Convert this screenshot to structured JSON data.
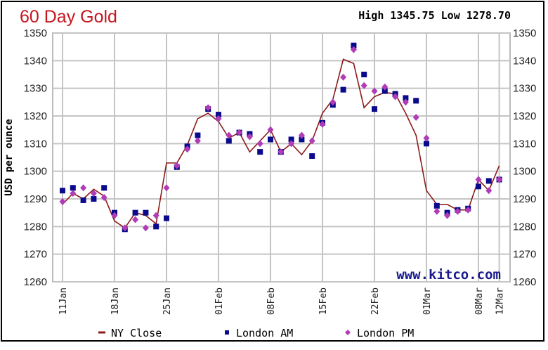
{
  "chart_data": {
    "type": "line",
    "title": "60 Day Gold",
    "subtitle": "High 1345.75 Low 1278.70",
    "ylabel": "USD per ounce",
    "xlabel": "",
    "watermark": "www.kitco.com",
    "ylim": [
      1260,
      1350
    ],
    "yticks": [
      1260,
      1270,
      1280,
      1290,
      1300,
      1310,
      1320,
      1330,
      1340,
      1350
    ],
    "grid": true,
    "legend_position": "bottom",
    "xticks": [
      {
        "index": 0,
        "label": "11Jan"
      },
      {
        "index": 5,
        "label": "18Jan"
      },
      {
        "index": 10,
        "label": "25Jan"
      },
      {
        "index": 15,
        "label": "01Feb"
      },
      {
        "index": 20,
        "label": "08Feb"
      },
      {
        "index": 25,
        "label": "15Feb"
      },
      {
        "index": 30,
        "label": "22Feb"
      },
      {
        "index": 35,
        "label": "01Mar"
      },
      {
        "index": 40,
        "label": "08Mar"
      },
      {
        "index": 42,
        "label": "12Mar"
      }
    ],
    "series": [
      {
        "name": "NY Close",
        "kind": "line",
        "color": "#8b1a1a",
        "values": [
          1288,
          1292,
          1290,
          1293.5,
          1291,
          1282,
          1279.5,
          1285,
          1284,
          1281,
          1303,
          1303,
          1309.5,
          1319,
          1321,
          1318,
          1312,
          1314,
          1307,
          1311,
          1315,
          1307,
          1310,
          1306,
          1311,
          1321,
          1326,
          1340.5,
          1339,
          1323,
          1327,
          1328.5,
          1328,
          1321,
          1313,
          1293,
          1288,
          1288,
          1286,
          1286,
          1297,
          1293,
          1302
        ]
      },
      {
        "name": "London AM",
        "kind": "square",
        "color": "#0a0a8c",
        "values": [
          1293,
          1294,
          1289.5,
          1290,
          1294,
          1285,
          1279,
          1285,
          1285,
          1280,
          1283,
          1301.5,
          1309,
          1313,
          1322.5,
          1320.5,
          1311,
          1314,
          1313.5,
          1307,
          1311.5,
          1307,
          1311.5,
          1311.5,
          1305.5,
          1317.5,
          1324,
          1329.5,
          1345.5,
          1335,
          1322.5,
          1329,
          1328,
          1326.5,
          1325.5,
          1310,
          1287.5,
          1285,
          1286,
          1286.5,
          1294.5,
          1296.5,
          1297
        ]
      },
      {
        "name": "London PM",
        "kind": "diamond",
        "color": "#b03cb8",
        "values": [
          1289,
          1292,
          1294,
          1292,
          1290.5,
          1284,
          1279.5,
          1282.5,
          1279.5,
          1284,
          1294,
          1302,
          1308,
          1311,
          1323,
          1319,
          1313,
          1314,
          1312.5,
          1310,
          1315,
          1307,
          1310,
          1313,
          1311,
          1317,
          1325,
          1334,
          1344,
          1331,
          1329,
          1330.5,
          1327,
          1325,
          1319.5,
          1312,
          1285.5,
          1284,
          1285.5,
          1286,
          1297,
          1293,
          1297
        ]
      }
    ]
  }
}
